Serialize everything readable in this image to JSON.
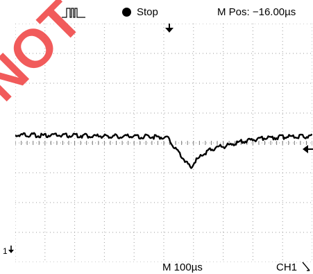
{
  "topbar": {
    "trigger_icon": "pulse-waveform-icon",
    "status_label": "Stop",
    "mpos_label": "M Pos: −16.00µs"
  },
  "watermark": {
    "text": "NOT"
  },
  "bottombar": {
    "timebase_label": "M 100µs",
    "channel_label": "CH1",
    "slope_icon": "falling-slope-icon"
  },
  "markers": {
    "ground_label": "1",
    "trigger_position_icon": "trigger-position-arrow-icon",
    "trigger_level_icon": "trigger-level-arrow-icon"
  },
  "colors": {
    "trace": "#000000",
    "grid": "#9a9a9a",
    "watermark": "#f04a4a"
  }
}
